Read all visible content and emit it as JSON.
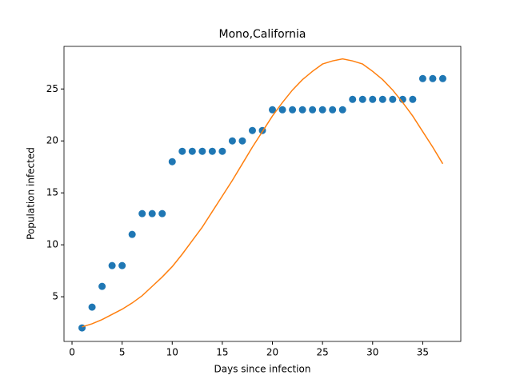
{
  "chart_data": {
    "type": "scatter_line",
    "title": "Mono,California",
    "x_label": "Days since infection",
    "y_label": "Population infected",
    "x": [
      1,
      2,
      3,
      4,
      5,
      6,
      7,
      8,
      9,
      10,
      11,
      12,
      13,
      14,
      15,
      16,
      17,
      18,
      19,
      20,
      21,
      22,
      23,
      24,
      25,
      26,
      27,
      28,
      29,
      30,
      31,
      32,
      33,
      34,
      35,
      36,
      37
    ],
    "series": [
      {
        "kind": "scatter",
        "color": "#1f77b4",
        "values": [
          2,
          4,
          6,
          8,
          8,
          11,
          13,
          13,
          13,
          18,
          19,
          19,
          19,
          19,
          19,
          20,
          20,
          21,
          21,
          23,
          23,
          23,
          23,
          23,
          23,
          23,
          23,
          24,
          24,
          24,
          24,
          24,
          24,
          24,
          26,
          26,
          26
        ]
      },
      {
        "kind": "line",
        "color": "#ff7f0e",
        "values": [
          2.1,
          2.4,
          2.8,
          3.3,
          3.8,
          4.4,
          5.1,
          6.0,
          6.9,
          7.9,
          9.1,
          10.4,
          11.7,
          13.2,
          14.7,
          16.2,
          17.8,
          19.4,
          20.9,
          22.4,
          23.7,
          24.9,
          25.9,
          26.7,
          27.4,
          27.7,
          27.9,
          27.7,
          27.4,
          26.7,
          25.9,
          24.9,
          23.7,
          22.4,
          20.9,
          19.4,
          17.8
        ]
      }
    ],
    "xlim": [
      -0.8,
      38.8
    ],
    "ylim": [
      0.7,
      29.1
    ],
    "xticks": [
      0,
      5,
      10,
      15,
      20,
      25,
      30,
      35
    ],
    "yticks": [
      5,
      10,
      15,
      20,
      25
    ]
  }
}
